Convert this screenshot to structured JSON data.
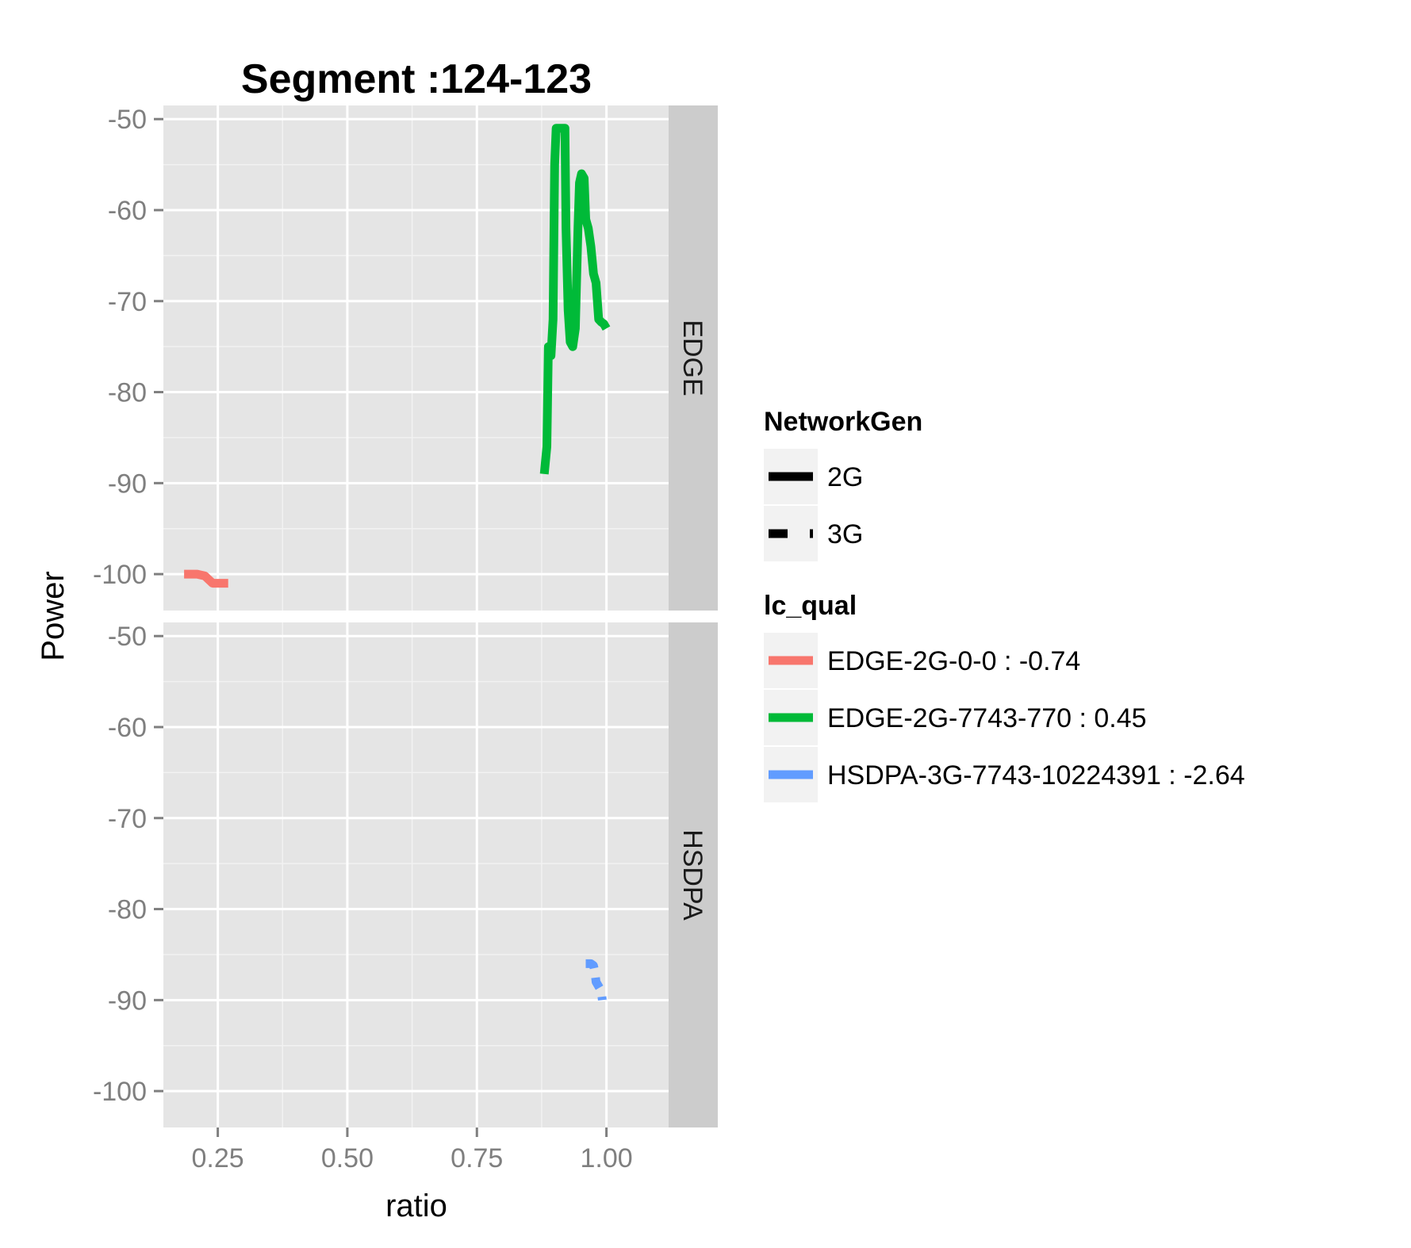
{
  "chart_data": {
    "type": "line",
    "title": "Segment :124-123",
    "xlabel": "ratio",
    "ylabel": "Power",
    "xlim": [
      0.145,
      1.12
    ],
    "ylim": [
      -104,
      -48.5
    ],
    "x_ticks": [
      0.25,
      0.5,
      0.75,
      1.0
    ],
    "x_tick_labels": [
      "0.25",
      "0.50",
      "0.75",
      "1.00"
    ],
    "y_ticks": [
      -50,
      -60,
      -70,
      -80,
      -90,
      -100
    ],
    "y_tick_labels": [
      "-50",
      "-60",
      "-70",
      "-80",
      "-90",
      "-100"
    ],
    "grid": true,
    "facets": [
      {
        "label": "EDGE",
        "series": [
          {
            "color_key": "EDGE-2G-0-0 : -0.74",
            "linetype": "2G",
            "points": [
              [
                0.185,
                -100
              ],
              [
                0.21,
                -100
              ],
              [
                0.225,
                -100.2
              ],
              [
                0.24,
                -101
              ],
              [
                0.26,
                -101
              ],
              [
                0.27,
                -101
              ]
            ]
          },
          {
            "color_key": "EDGE-2G-7743-770 : 0.45",
            "linetype": "2G",
            "points": [
              [
                0.88,
                -89
              ],
              [
                0.885,
                -86
              ],
              [
                0.888,
                -75
              ],
              [
                0.893,
                -76
              ],
              [
                0.897,
                -72
              ],
              [
                0.9,
                -55
              ],
              [
                0.903,
                -51
              ],
              [
                0.908,
                -51
              ],
              [
                0.912,
                -51
              ],
              [
                0.916,
                -51
              ],
              [
                0.92,
                -51
              ],
              [
                0.922,
                -62
              ],
              [
                0.926,
                -71
              ],
              [
                0.93,
                -74.5
              ],
              [
                0.935,
                -75
              ],
              [
                0.94,
                -73
              ],
              [
                0.945,
                -62
              ],
              [
                0.948,
                -57
              ],
              [
                0.952,
                -56
              ],
              [
                0.957,
                -56.5
              ],
              [
                0.96,
                -61
              ],
              [
                0.965,
                -62
              ],
              [
                0.97,
                -64
              ],
              [
                0.975,
                -67
              ],
              [
                0.98,
                -68
              ],
              [
                0.985,
                -72
              ],
              [
                0.99,
                -72.3
              ],
              [
                0.995,
                -72.5
              ],
              [
                1.0,
                -73
              ]
            ]
          }
        ]
      },
      {
        "label": "HSDPA",
        "series": [
          {
            "color_key": "HSDPA-3G-7743-10224391 : -2.64",
            "linetype": "3G",
            "points": [
              [
                0.96,
                -86
              ],
              [
                0.97,
                -86
              ],
              [
                0.975,
                -86.2
              ],
              [
                0.978,
                -87
              ],
              [
                0.98,
                -88
              ],
              [
                0.99,
                -89
              ],
              [
                0.992,
                -90
              ]
            ]
          }
        ]
      }
    ],
    "legends": [
      {
        "title": "NetworkGen",
        "type": "linetype",
        "items": [
          {
            "label": "2G",
            "linetype": "solid"
          },
          {
            "label": "3G",
            "linetype": "dashed"
          }
        ]
      },
      {
        "title": "lc_qual",
        "type": "color",
        "items": [
          {
            "label": "EDGE-2G-0-0 : -0.74",
            "color": "#F8766D"
          },
          {
            "label": "EDGE-2G-7743-770 : 0.45",
            "color": "#00BA38"
          },
          {
            "label": "HSDPA-3G-7743-10224391 : -2.64",
            "color": "#619CFF"
          }
        ]
      }
    ],
    "legend_position": "right",
    "colors": {
      "panel_background": "#E5E5E5",
      "strip_background": "#CCCCCC",
      "grid_major": "#FFFFFF",
      "grid_minor": "#F2F2F2",
      "legend_key_background": "#F2F2F2"
    }
  }
}
